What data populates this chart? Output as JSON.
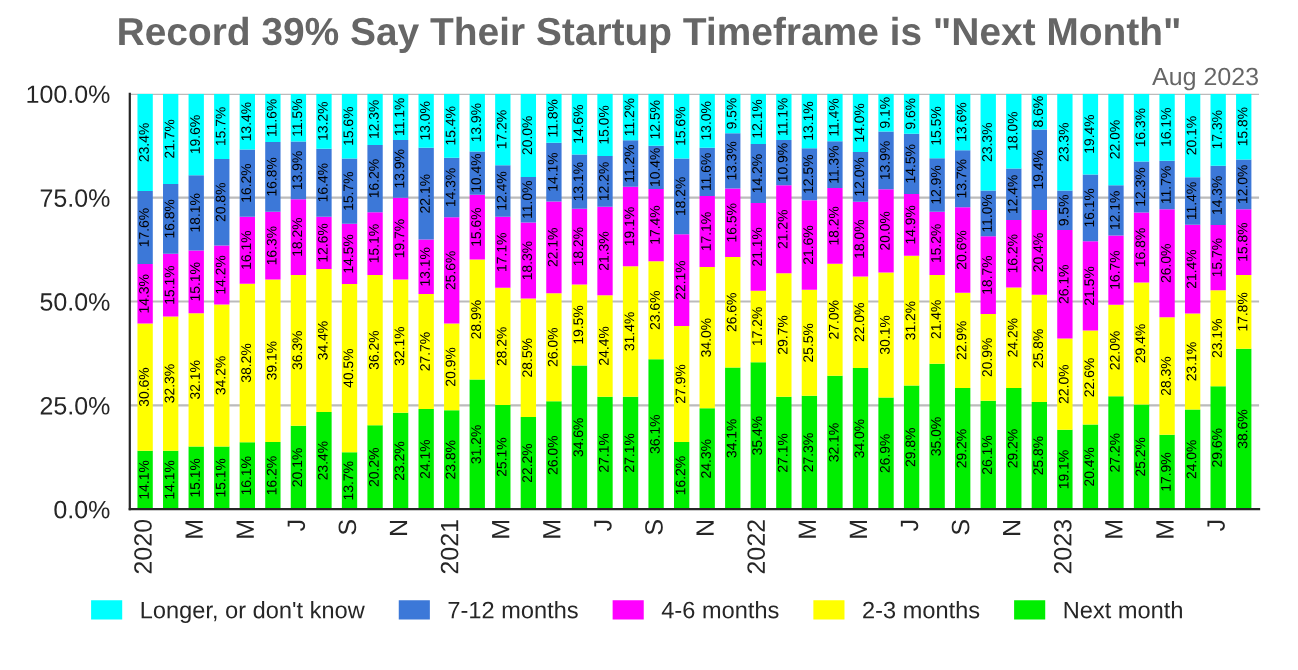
{
  "chart_data": {
    "type": "bar",
    "stacked": true,
    "title": "Record 39% Say Their Startup Timeframe is \"Next Month\"",
    "annotations": [
      "Aug 2023"
    ],
    "categories": [
      "2020",
      null,
      "M",
      null,
      "M",
      null,
      "J",
      null,
      "S",
      null,
      "N",
      null,
      "2021",
      null,
      "M",
      null,
      "M",
      null,
      "J",
      null,
      "S",
      null,
      "N",
      null,
      "2022",
      null,
      "M",
      null,
      "M",
      null,
      "J",
      null,
      "S",
      null,
      "N",
      null,
      "2023",
      null,
      "M",
      null,
      "M",
      null,
      "J",
      null
    ],
    "series": [
      {
        "name": "Next month",
        "color": "#00ee00",
        "values": [
          14.1,
          14.1,
          15.1,
          15.1,
          16.1,
          16.2,
          20.1,
          23.4,
          13.7,
          20.2,
          23.2,
          24.1,
          23.8,
          31.2,
          25.1,
          22.2,
          26.0,
          34.6,
          27.1,
          27.1,
          36.1,
          16.2,
          24.3,
          34.1,
          35.4,
          27.1,
          27.3,
          32.1,
          34.0,
          26.9,
          29.8,
          35.0,
          29.2,
          26.1,
          29.2,
          25.8,
          19.1,
          20.4,
          27.2,
          25.2,
          17.9,
          24.0,
          29.6,
          38.6
        ],
        "value_labels": [
          "14.1%",
          "14.1%",
          "15.1%",
          "15.1%",
          "16.1%",
          "16.2%",
          "20.1%",
          "23.4%",
          "13.7%",
          "20.2%",
          "23.2%",
          "24.1%",
          "23.8%",
          "31.2%",
          "25.1%",
          "22.2%",
          "26.0%",
          "34.6%",
          "27.1%",
          "27.1%",
          "36.1%",
          "16.2%",
          "24.3%",
          "34.1%",
          "35.4%",
          "27.1%",
          "27.3%",
          "32.1%",
          "34.0%",
          "26.9%",
          "29.8%",
          "35.0%",
          "29.2%",
          "26.1%",
          "29.2%",
          "25.8%",
          "19.1%",
          "20.4%",
          "27.2%",
          "25.2%",
          "17.9%",
          "24.0%",
          "29.6%",
          "38.6%"
        ]
      },
      {
        "name": "2-3 months",
        "color": "#ffff00",
        "values": [
          30.6,
          32.3,
          32.1,
          34.2,
          38.2,
          39.1,
          36.3,
          34.4,
          40.5,
          36.2,
          32.1,
          27.7,
          20.9,
          28.9,
          28.2,
          28.5,
          26.0,
          19.5,
          24.4,
          31.4,
          23.6,
          27.9,
          34.0,
          26.6,
          17.2,
          29.7,
          25.5,
          27.0,
          22.0,
          30.1,
          31.2,
          21.4,
          22.9,
          20.9,
          24.2,
          25.8,
          22.0,
          22.6,
          22.0,
          29.4,
          28.3,
          23.1,
          23.1,
          17.8
        ],
        "value_labels": [
          "30.6%",
          "32.3%",
          "32.1%",
          "34.2%",
          "38.2%",
          "39.1%",
          "36.3%",
          "34.4%",
          "40.5%",
          "36.2%",
          "32.1%",
          "27.7%",
          "20.9%",
          "28.9%",
          "28.2%",
          "28.5%",
          "26.0%",
          "19.5%",
          "24.4%",
          "31.4%",
          "23.6%",
          "27.9%",
          "34.0%",
          "26.6%",
          "17.2%",
          "29.7%",
          "25.5%",
          "27.0%",
          "22.0%",
          "30.1%",
          "31.2%",
          "21.4%",
          "22.9%",
          "20.9%",
          "24.2%",
          "25.8%",
          "22.0%",
          "22.6%",
          "22.0%",
          "29.4%",
          "28.3%",
          "23.1%",
          "23.1%",
          "17.8%"
        ]
      },
      {
        "name": "4-6 months",
        "color": "#ff00ff",
        "values": [
          14.3,
          15.1,
          15.1,
          14.2,
          16.1,
          16.3,
          18.2,
          12.6,
          14.5,
          15.1,
          19.7,
          13.1,
          25.6,
          15.6,
          17.1,
          18.3,
          22.1,
          18.2,
          21.3,
          19.1,
          17.4,
          22.1,
          17.1,
          16.5,
          21.1,
          21.2,
          21.6,
          18.2,
          18.0,
          20.0,
          14.9,
          15.2,
          20.6,
          18.7,
          16.2,
          20.4,
          26.1,
          21.5,
          16.7,
          16.8,
          26.0,
          21.4,
          15.7,
          15.8
        ],
        "value_labels": [
          "14.3%",
          "15.1%",
          "15.1%",
          "14.2%",
          "16.1%",
          "16.3%",
          "18.2%",
          "12.6%",
          "14.5%",
          "15.1%",
          "19.7%",
          "13.1%",
          "25.6%",
          "15.6%",
          "17.1%",
          "18.3%",
          "22.1%",
          "18.2%",
          "21.3%",
          "19.1%",
          "17.4%",
          "22.1%",
          "17.1%",
          "16.5%",
          "21.1%",
          "21.2%",
          "21.6%",
          "18.2%",
          "18.0%",
          "20.0%",
          "14.9%",
          "15.2%",
          "20.6%",
          "18.7%",
          "16.2%",
          "20.4%",
          "26.1%",
          "21.5%",
          "16.7%",
          "16.8%",
          "26.0%",
          "21.4%",
          "15.7%",
          "15.8%"
        ]
      },
      {
        "name": "7-12 months",
        "color": "#3c78d8",
        "values": [
          17.6,
          16.8,
          18.1,
          20.8,
          16.2,
          16.8,
          13.9,
          16.4,
          15.7,
          16.2,
          13.9,
          22.1,
          14.3,
          10.4,
          12.4,
          11.0,
          14.1,
          13.1,
          12.2,
          11.2,
          10.4,
          18.2,
          11.6,
          13.3,
          14.2,
          10.9,
          12.5,
          11.3,
          12.0,
          13.9,
          14.5,
          12.9,
          13.7,
          11.0,
          12.4,
          19.4,
          9.5,
          16.1,
          12.1,
          12.3,
          11.7,
          11.4,
          14.3,
          12.0
        ],
        "value_labels": [
          "17.6%",
          "16.8%",
          "18.1%",
          "20.8%",
          "16.2%",
          "16.8%",
          "13.9%",
          "16.4%",
          "15.7%",
          "16.2%",
          "13.9%",
          "22.1%",
          "14.3%",
          "10.4%",
          "12.4%",
          "11.0%",
          "14.1%",
          "13.1%",
          "12.2%",
          "11.2%",
          "10.4%",
          "18.2%",
          "11.6%",
          "13.3%",
          "14.2%",
          "10.9%",
          "12.5%",
          "11.3%",
          "12.0%",
          "13.9%",
          "14.5%",
          "12.9%",
          "13.7%",
          "11.0%",
          "12.4%",
          "19.4%",
          "9.5%",
          "16.1%",
          "12.1%",
          "12.3%",
          "11.7%",
          "11.4%",
          "14.3%",
          "12.0%"
        ]
      },
      {
        "name": "Longer, or don't know",
        "color": "#00ffff",
        "values": [
          23.4,
          21.7,
          19.6,
          15.7,
          13.4,
          11.6,
          11.5,
          13.2,
          15.6,
          12.3,
          11.1,
          13.0,
          15.4,
          13.9,
          17.2,
          20.0,
          11.8,
          14.6,
          15.0,
          11.2,
          12.5,
          15.6,
          13.0,
          9.5,
          12.1,
          11.1,
          13.1,
          11.4,
          14.0,
          9.1,
          9.6,
          15.5,
          13.6,
          23.3,
          18.0,
          8.6,
          23.3,
          19.4,
          22.0,
          16.3,
          16.1,
          20.1,
          17.3,
          15.8
        ],
        "value_labels": [
          "23.4%",
          "21.7%",
          "19.6%",
          "15.7%",
          "13.4%",
          "11.6%",
          "11.5%",
          "13.2%",
          "15.6%",
          "12.3%",
          "11.1%",
          "13.0%",
          "15.4%",
          "13.9%",
          "17.2%",
          "20.0%",
          "11.8%",
          "14.6%",
          "15.0%",
          "11.2%",
          "12.5%",
          "15.6%",
          "13.0%",
          "9.5%",
          "12.1%",
          "11.1%",
          "13.1%",
          "11.4%",
          "14.0%",
          "9.1%",
          "9.6%",
          "15.5%",
          "13.6%",
          "23.3%",
          "18.0%",
          "8.6%",
          "23.3%",
          "19.4%",
          "22.0%",
          "16.3%",
          "16.1%",
          "20.1%",
          "17.3%",
          "15.8%"
        ]
      }
    ],
    "ylim": [
      0,
      100
    ],
    "yticks": [
      {
        "value": 0,
        "label": "0.0%"
      },
      {
        "value": 25,
        "label": "25.0%"
      },
      {
        "value": 50,
        "label": "50.0%"
      },
      {
        "value": 75,
        "label": "75.0%"
      },
      {
        "value": 100,
        "label": "100.0%"
      }
    ],
    "grid": "y",
    "legend": "bottom"
  }
}
